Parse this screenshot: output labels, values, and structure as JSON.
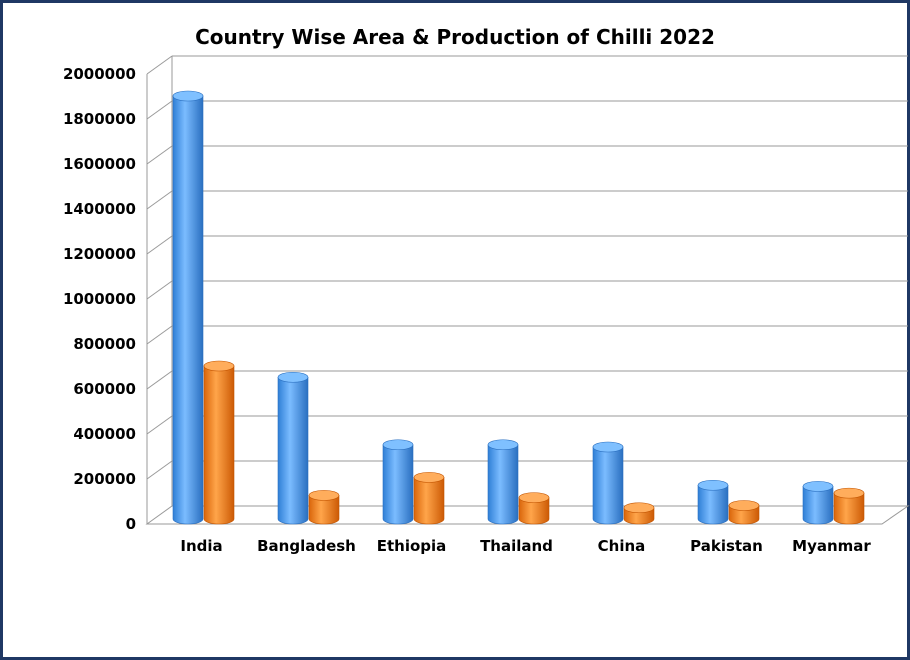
{
  "chart_data": {
    "type": "bar",
    "title": "Country Wise Area & Production of Chilli 2022",
    "categories": [
      "India",
      "Bangladesh",
      "Ethiopia",
      "Thailand",
      "China",
      "Pakistan",
      "Myanmar"
    ],
    "series": [
      {
        "values": [
          1880000,
          630000,
          330000,
          330000,
          320000,
          150000,
          145000
        ]
      },
      {
        "values": [
          680000,
          105000,
          185000,
          95000,
          50000,
          60000,
          115000
        ]
      }
    ],
    "yticks": [
      "0",
      "200000",
      "400000",
      "600000",
      "800000",
      "1000000",
      "1200000",
      "1400000",
      "1600000",
      "1800000",
      "2000000"
    ],
    "ylim": [
      0,
      2000000
    ],
    "grid": true,
    "legend": "none",
    "colors": {
      "series_1": "#4a9cf0",
      "series_2": "#f5841f",
      "frame": "#1f3864",
      "grid": "#9a9a9a"
    }
  }
}
